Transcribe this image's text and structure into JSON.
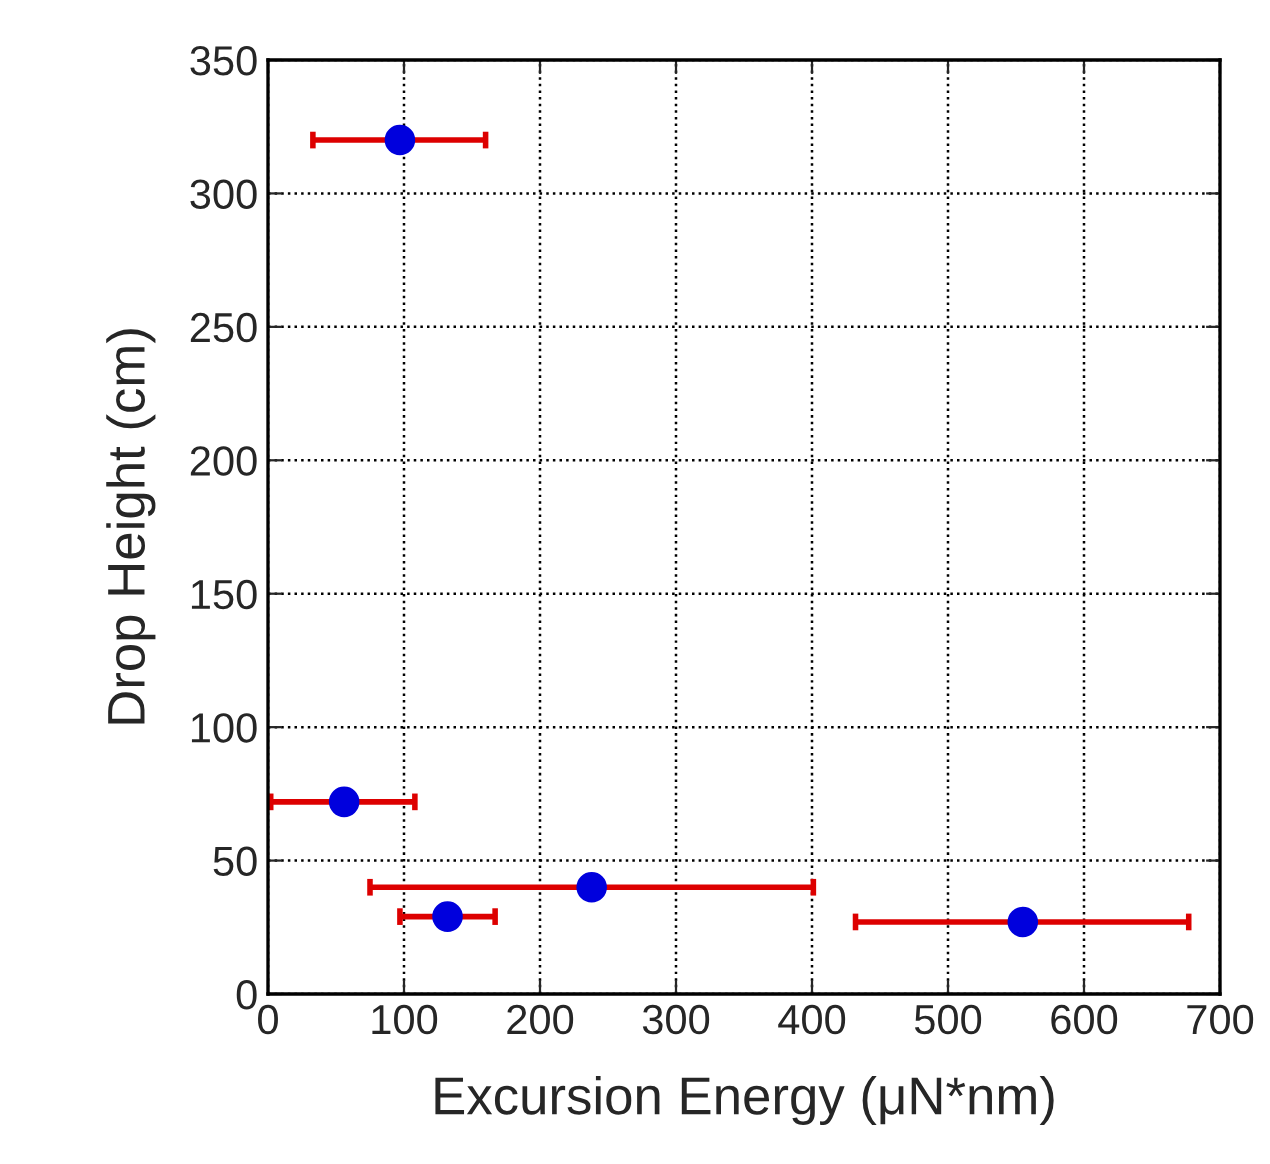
{
  "chart_data": {
    "type": "scatter",
    "xlabel": "Excursion Energy (μN*nm)",
    "ylabel": "Drop Height (cm)",
    "x": [
      97,
      56,
      238,
      132,
      555
    ],
    "values": [
      320,
      72,
      40,
      29,
      27
    ],
    "xerrors": [
      [
        33,
        160
      ],
      [
        2,
        108
      ],
      [
        75,
        401
      ],
      [
        97,
        167
      ],
      [
        432,
        677
      ]
    ],
    "color": "#0000dd",
    "xlim": [
      0,
      700
    ],
    "xticks": [
      0,
      100,
      200,
      300,
      400,
      500,
      600,
      700
    ],
    "ylim": [
      0,
      350
    ],
    "yticks": [
      0,
      50,
      100,
      150,
      200,
      250,
      300,
      350
    ],
    "grid": true,
    "marker": "circle"
  }
}
